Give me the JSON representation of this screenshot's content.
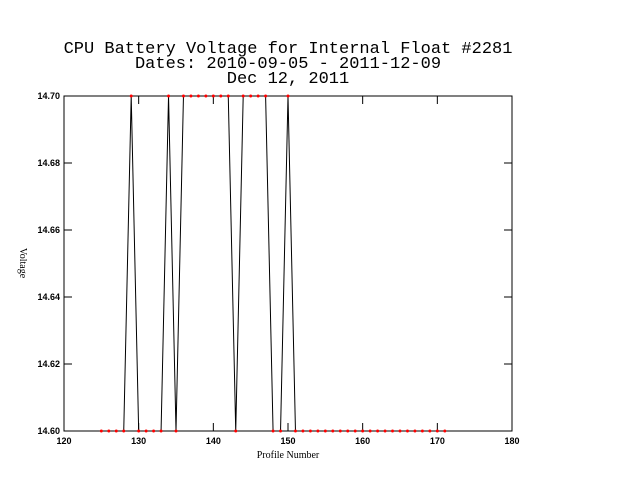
{
  "chart_data": {
    "type": "line",
    "title": "CPU Battery Voltage for Internal Float #2281",
    "subtitle": "Dates:  2010-09-05 -  2011-12-09",
    "date_line": "Dec 12, 2011",
    "x_label": "Profile Number",
    "y_label": "Voltage",
    "x": [
      125,
      126,
      127,
      128,
      129,
      130,
      131,
      132,
      133,
      134,
      135,
      136,
      137,
      138,
      139,
      140,
      141,
      142,
      143,
      144,
      145,
      146,
      147,
      148,
      149,
      150,
      151,
      152,
      153,
      154,
      155,
      156,
      157,
      158,
      159,
      160,
      161,
      162,
      163,
      164,
      165,
      166,
      167,
      168,
      169,
      170,
      171
    ],
    "values": [
      14.6,
      14.6,
      14.6,
      14.6,
      14.7,
      14.6,
      14.6,
      14.6,
      14.6,
      14.7,
      14.6,
      14.7,
      14.7,
      14.7,
      14.7,
      14.7,
      14.7,
      14.7,
      14.6,
      14.7,
      14.7,
      14.7,
      14.7,
      14.6,
      14.6,
      14.7,
      14.6,
      14.6,
      14.6,
      14.6,
      14.6,
      14.6,
      14.6,
      14.6,
      14.6,
      14.6,
      14.6,
      14.6,
      14.6,
      14.6,
      14.6,
      14.6,
      14.6,
      14.6,
      14.6,
      14.6,
      14.6
    ],
    "color": "#000000",
    "marker_color": "#ff0000",
    "xlim": [
      120,
      180
    ],
    "xticks": [
      120,
      130,
      140,
      150,
      160,
      170,
      180
    ],
    "ylim": [
      14.6,
      14.7
    ],
    "yticks": [
      {
        "value": 14.6,
        "label": "14.60"
      },
      {
        "value": 14.62,
        "label": "14.62"
      },
      {
        "value": 14.64,
        "label": "14.64"
      },
      {
        "value": 14.66,
        "label": "14.66"
      },
      {
        "value": 14.68,
        "label": "14.68"
      },
      {
        "value": 14.7,
        "label": "14.70"
      }
    ]
  }
}
